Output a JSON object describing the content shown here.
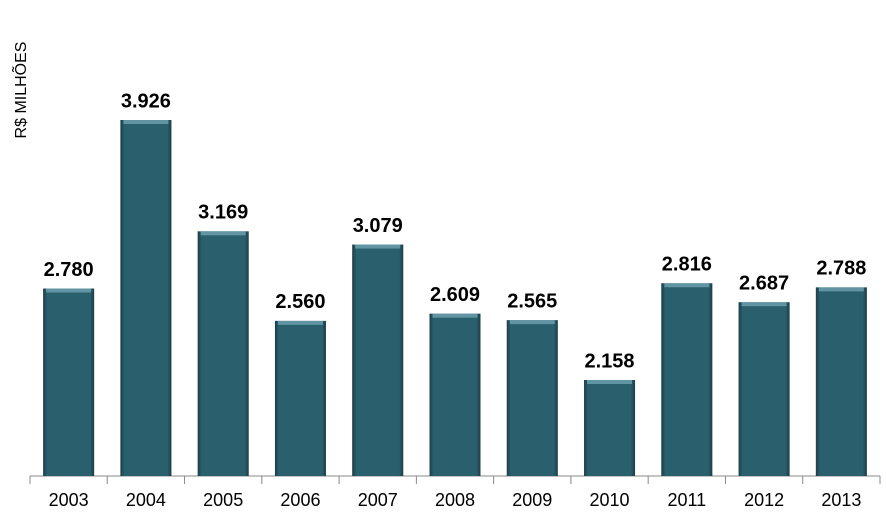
{
  "chart_data": {
    "type": "bar",
    "y_label": "R$ MILHÕES",
    "categories": [
      "2003",
      "2004",
      "2005",
      "2006",
      "2007",
      "2008",
      "2009",
      "2010",
      "2011",
      "2012",
      "2013"
    ],
    "values": [
      2780,
      3926,
      3169,
      2560,
      3079,
      2609,
      2565,
      2158,
      2816,
      2687,
      2788
    ],
    "value_labels": [
      "2.780",
      "3.926",
      "3.169",
      "2.560",
      "3.079",
      "2.609",
      "2.565",
      "2.158",
      "2.816",
      "2.687",
      "2.788"
    ],
    "color": "#2a5f6d"
  }
}
